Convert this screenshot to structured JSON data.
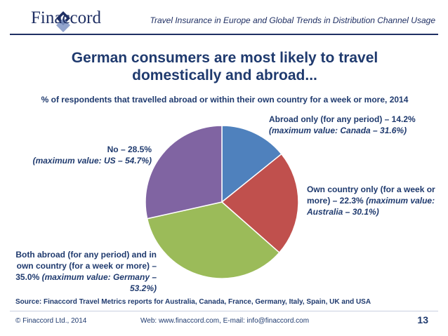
{
  "header": {
    "brand": "Finaccord",
    "report_title": "Travel Insurance in Europe and Global Trends in Distribution Channel Usage"
  },
  "slide": {
    "title_line1": "German consumers are most likely to travel",
    "title_line2": "domestically and abroad...",
    "subtitle": "% of respondents that travelled abroad or within their own country for a week or more, 2014"
  },
  "labels": {
    "abroad_main": "Abroad only (for any period)  – 14.2%",
    "abroad_max": "(maximum value: Canada – 31.6%)",
    "own_main": "Own country only (for a week or more) – 22.3%",
    "own_max": "(maximum value: Australia – 30.1%)",
    "no_main": "No – 28.5%",
    "no_max": "(maximum value: US – 54.7%)",
    "both_main": "Both abroad (for any period)  and in own country (for a week or more) – 35.0%",
    "both_max": "(maximum value: Germany – 53.2%)"
  },
  "chart_data": {
    "type": "pie",
    "title": "% of respondents that travelled abroad or within their own country for a week or more, 2014",
    "categories": [
      "Abroad only (for any period)",
      "Own country only (for a week or more)",
      "Both abroad (for any period) and in own country (for a week or more)",
      "No"
    ],
    "values": [
      14.2,
      22.3,
      35.0,
      28.5
    ],
    "colors": [
      "#4f81bd",
      "#c0504d",
      "#9bbb59",
      "#8064a2"
    ]
  },
  "footer": {
    "source": "Source: Finaccord Travel Metrics reports for Australia, Canada, France, Germany, Italy, Spain, UK and USA",
    "copyright": "© Finaccord Ltd., 2014",
    "web": "Web: www.finaccord.com, E-mail: info@finaccord.com",
    "page": "13"
  }
}
